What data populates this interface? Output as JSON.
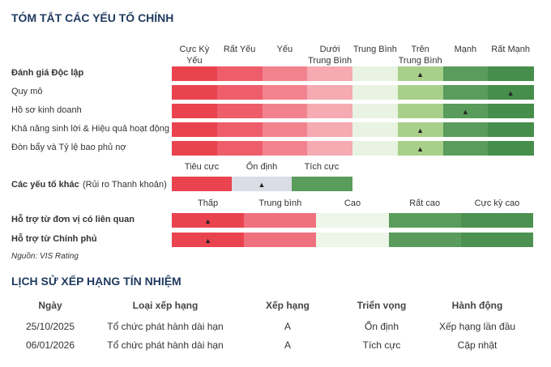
{
  "summary": {
    "title": "TÓM TẮT CÁC YẾU TỐ CHÍNH",
    "scale": {
      "columns": [
        [
          "Cực Kỳ",
          "Yếu"
        ],
        [
          "Rất Yếu"
        ],
        [
          "Yếu"
        ],
        [
          "Dưới",
          "Trung Bình"
        ],
        [
          "Trung Bình"
        ],
        [
          "Trên",
          "Trung Bình"
        ],
        [
          "Mạnh"
        ],
        [
          "Rất Mạnh"
        ]
      ],
      "colors": [
        "#ea4350",
        "#ee5d6a",
        "#f2838e",
        "#f6aab2",
        "#e8f4e1",
        "#a8d08b",
        "#5a9c5c",
        "#458e4b"
      ],
      "rows": [
        {
          "label": "Đánh giá Độc lập",
          "bold": true,
          "marker": 5
        },
        {
          "label": "Quy mô",
          "bold": false,
          "marker": 7
        },
        {
          "label": "Hồ sơ kinh doanh",
          "bold": false,
          "marker": 6
        },
        {
          "label": "Khả năng sinh lời & Hiệu quả hoạt động",
          "bold": false,
          "marker": 5
        },
        {
          "label": "Đòn bẩy và Tỷ lệ bao phủ nợ",
          "bold": false,
          "marker": 5
        }
      ]
    },
    "other": {
      "columns": [
        "Tiêu cực",
        "Ổn định",
        "Tích cực"
      ],
      "colors": [
        "#ea4350",
        "#dadde6",
        "#5a9c5c"
      ],
      "label": "Các yếu tố khác",
      "note": "(Rủi ro Thanh khoản)",
      "marker": 1
    },
    "support": {
      "columns": [
        "Thấp",
        "Trung bình",
        "Cao",
        "Rất cao",
        "Cực kỳ cao"
      ],
      "colors": [
        "#ea4350",
        "#f0717e",
        "#edf6e8",
        "#5a9c5c",
        "#4d9152"
      ],
      "rows": [
        {
          "label": "Hỗ trợ từ đơn vị có liên quan",
          "marker": 0
        },
        {
          "label": "Hỗ trợ từ Chính phủ",
          "marker": 0
        }
      ]
    },
    "source": "Nguồn: VIS Rating"
  },
  "history": {
    "title": "LỊCH SỬ XẾP HẠNG TÍN NHIỆM",
    "header": [
      "Ngày",
      "Loại xếp hạng",
      "Xếp hạng",
      "Triển vọng",
      "Hành động"
    ],
    "rows": [
      [
        "25/10/2025",
        "Tổ chức phát hành dài hạn",
        "A",
        "Ổn định",
        "Xếp hạng lần đầu"
      ],
      [
        "06/01/2026",
        "Tổ chức phát hành dài hạn",
        "A",
        "Tích cực",
        "Cập nhật"
      ]
    ]
  }
}
